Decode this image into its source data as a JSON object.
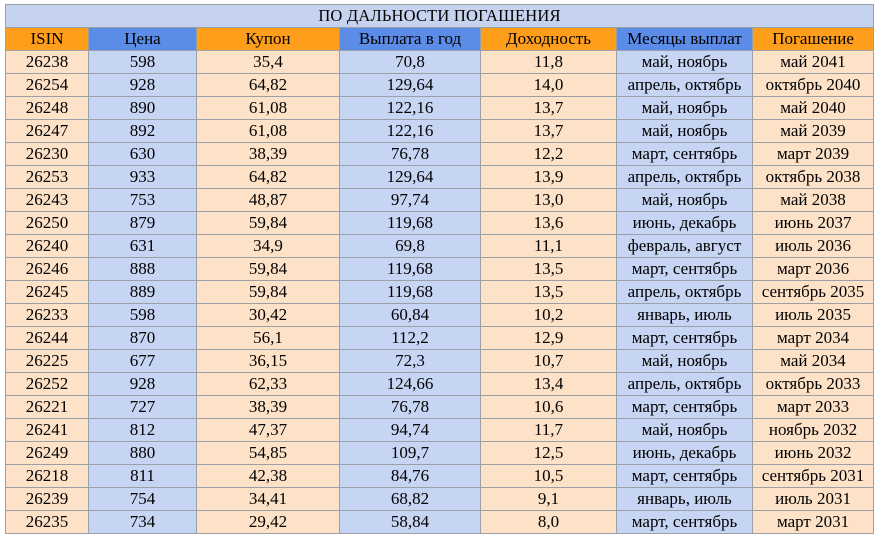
{
  "title": "ПО ДАЛЬНОСТИ ПОГАШЕНИЯ",
  "columns": [
    "ISIN",
    "Цена",
    "Купон",
    "Выплата в год",
    "Доходность",
    "Месяцы выплат",
    "Погашение"
  ],
  "colors": {
    "header_orange": "#ff9e1b",
    "header_blue": "#5b8de8",
    "cell_peach": "#fde2c8",
    "cell_blue": "#c6d5f3",
    "title_bg": "#c6d3ee"
  },
  "rows": [
    [
      "26238",
      "598",
      "35,4",
      "70,8",
      "11,8",
      "май, ноябрь",
      "май 2041"
    ],
    [
      "26254",
      "928",
      "64,82",
      "129,64",
      "14,0",
      "апрель, октябрь",
      "октябрь 2040"
    ],
    [
      "26248",
      "890",
      "61,08",
      "122,16",
      "13,7",
      "май, ноябрь",
      "май 2040"
    ],
    [
      "26247",
      "892",
      "61,08",
      "122,16",
      "13,7",
      "май, ноябрь",
      "май 2039"
    ],
    [
      "26230",
      "630",
      "38,39",
      "76,78",
      "12,2",
      "март, сентябрь",
      "март 2039"
    ],
    [
      "26253",
      "933",
      "64,82",
      "129,64",
      "13,9",
      "апрель, октябрь",
      "октябрь 2038"
    ],
    [
      "26243",
      "753",
      "48,87",
      "97,74",
      "13,0",
      "май, ноябрь",
      "май 2038"
    ],
    [
      "26250",
      "879",
      "59,84",
      "119,68",
      "13,6",
      "июнь, декабрь",
      "июнь 2037"
    ],
    [
      "26240",
      "631",
      "34,9",
      "69,8",
      "11,1",
      "февраль, август",
      "июль 2036"
    ],
    [
      "26246",
      "888",
      "59,84",
      "119,68",
      "13,5",
      "март, сентябрь",
      "март 2036"
    ],
    [
      "26245",
      "889",
      "59,84",
      "119,68",
      "13,5",
      "апрель, октябрь",
      "сентябрь 2035"
    ],
    [
      "26233",
      "598",
      "30,42",
      "60,84",
      "10,2",
      "январь, июль",
      "июль 2035"
    ],
    [
      "26244",
      "870",
      "56,1",
      "112,2",
      "12,9",
      "март, сентябрь",
      "март 2034"
    ],
    [
      "26225",
      "677",
      "36,15",
      "72,3",
      "10,7",
      "май, ноябрь",
      "май 2034"
    ],
    [
      "26252",
      "928",
      "62,33",
      "124,66",
      "13,4",
      "апрель, октябрь",
      "октябрь 2033"
    ],
    [
      "26221",
      "727",
      "38,39",
      "76,78",
      "10,6",
      "март, сентябрь",
      "март 2033"
    ],
    [
      "26241",
      "812",
      "47,37",
      "94,74",
      "11,7",
      "май, ноябрь",
      "ноябрь 2032"
    ],
    [
      "26249",
      "880",
      "54,85",
      "109,7",
      "12,5",
      "июнь, декабрь",
      "июнь 2032"
    ],
    [
      "26218",
      "811",
      "42,38",
      "84,76",
      "10,5",
      "март, сентябрь",
      "сентябрь 2031"
    ],
    [
      "26239",
      "754",
      "34,41",
      "68,82",
      "9,1",
      "январь, июль",
      "июль 2031"
    ],
    [
      "26235",
      "734",
      "29,42",
      "58,84",
      "8,0",
      "март, сентябрь",
      "март 2031"
    ]
  ]
}
